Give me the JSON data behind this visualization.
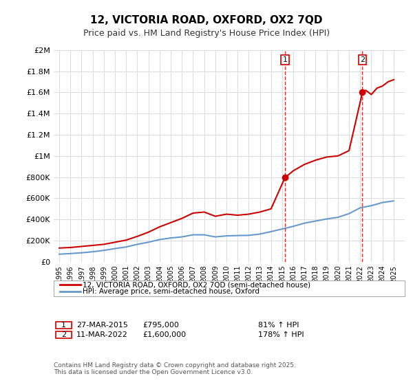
{
  "title": "12, VICTORIA ROAD, OXFORD, OX2 7QD",
  "subtitle": "Price paid vs. HM Land Registry's House Price Index (HPI)",
  "red_label": "12, VICTORIA ROAD, OXFORD, OX2 7QD (semi-detached house)",
  "blue_label": "HPI: Average price, semi-detached house, Oxford",
  "annotation1_label": "1",
  "annotation1_date": "27-MAR-2015",
  "annotation1_price": "£795,000",
  "annotation1_hpi": "81% ↑ HPI",
  "annotation2_label": "2",
  "annotation2_date": "11-MAR-2022",
  "annotation2_price": "£1,600,000",
  "annotation2_hpi": "178% ↑ HPI",
  "footnote": "Contains HM Land Registry data © Crown copyright and database right 2025.\nThis data is licensed under the Open Government Licence v3.0.",
  "red_color": "#cc0000",
  "blue_color": "#6699cc",
  "dashed_color": "#cc0000",
  "background_color": "#ffffff",
  "grid_color": "#dddddd",
  "ylim": [
    0,
    2000000
  ],
  "xlim_start": 1995,
  "xlim_end": 2026,
  "vline1_x": 2015.25,
  "vline2_x": 2022.2,
  "sale1_x": 2015.25,
  "sale1_y": 795000,
  "sale2_x": 2022.2,
  "sale2_y": 1600000,
  "red_x": [
    1995,
    1996,
    1997,
    1998,
    1999,
    2000,
    2001,
    2002,
    2003,
    2004,
    2005,
    2006,
    2007,
    2008,
    2009,
    2010,
    2011,
    2012,
    2013,
    2014,
    2015.25,
    2016,
    2017,
    2018,
    2019,
    2020,
    2021,
    2022.2,
    2022.5,
    2023,
    2023.5,
    2024,
    2024.5,
    2025
  ],
  "red_y": [
    130000,
    135000,
    145000,
    155000,
    165000,
    185000,
    205000,
    240000,
    280000,
    330000,
    370000,
    410000,
    460000,
    470000,
    430000,
    450000,
    440000,
    450000,
    470000,
    500000,
    795000,
    860000,
    920000,
    960000,
    990000,
    1000000,
    1050000,
    1600000,
    1620000,
    1580000,
    1640000,
    1660000,
    1700000,
    1720000
  ],
  "blue_x": [
    1995,
    1996,
    1997,
    1998,
    1999,
    2000,
    2001,
    2002,
    2003,
    2004,
    2005,
    2006,
    2007,
    2008,
    2009,
    2010,
    2011,
    2012,
    2013,
    2014,
    2015,
    2016,
    2017,
    2018,
    2019,
    2020,
    2021,
    2022,
    2023,
    2024,
    2025
  ],
  "blue_y": [
    72000,
    78000,
    85000,
    95000,
    108000,
    125000,
    140000,
    165000,
    185000,
    210000,
    225000,
    235000,
    255000,
    255000,
    235000,
    245000,
    248000,
    250000,
    262000,
    285000,
    310000,
    335000,
    365000,
    385000,
    405000,
    420000,
    455000,
    510000,
    530000,
    560000,
    575000
  ]
}
